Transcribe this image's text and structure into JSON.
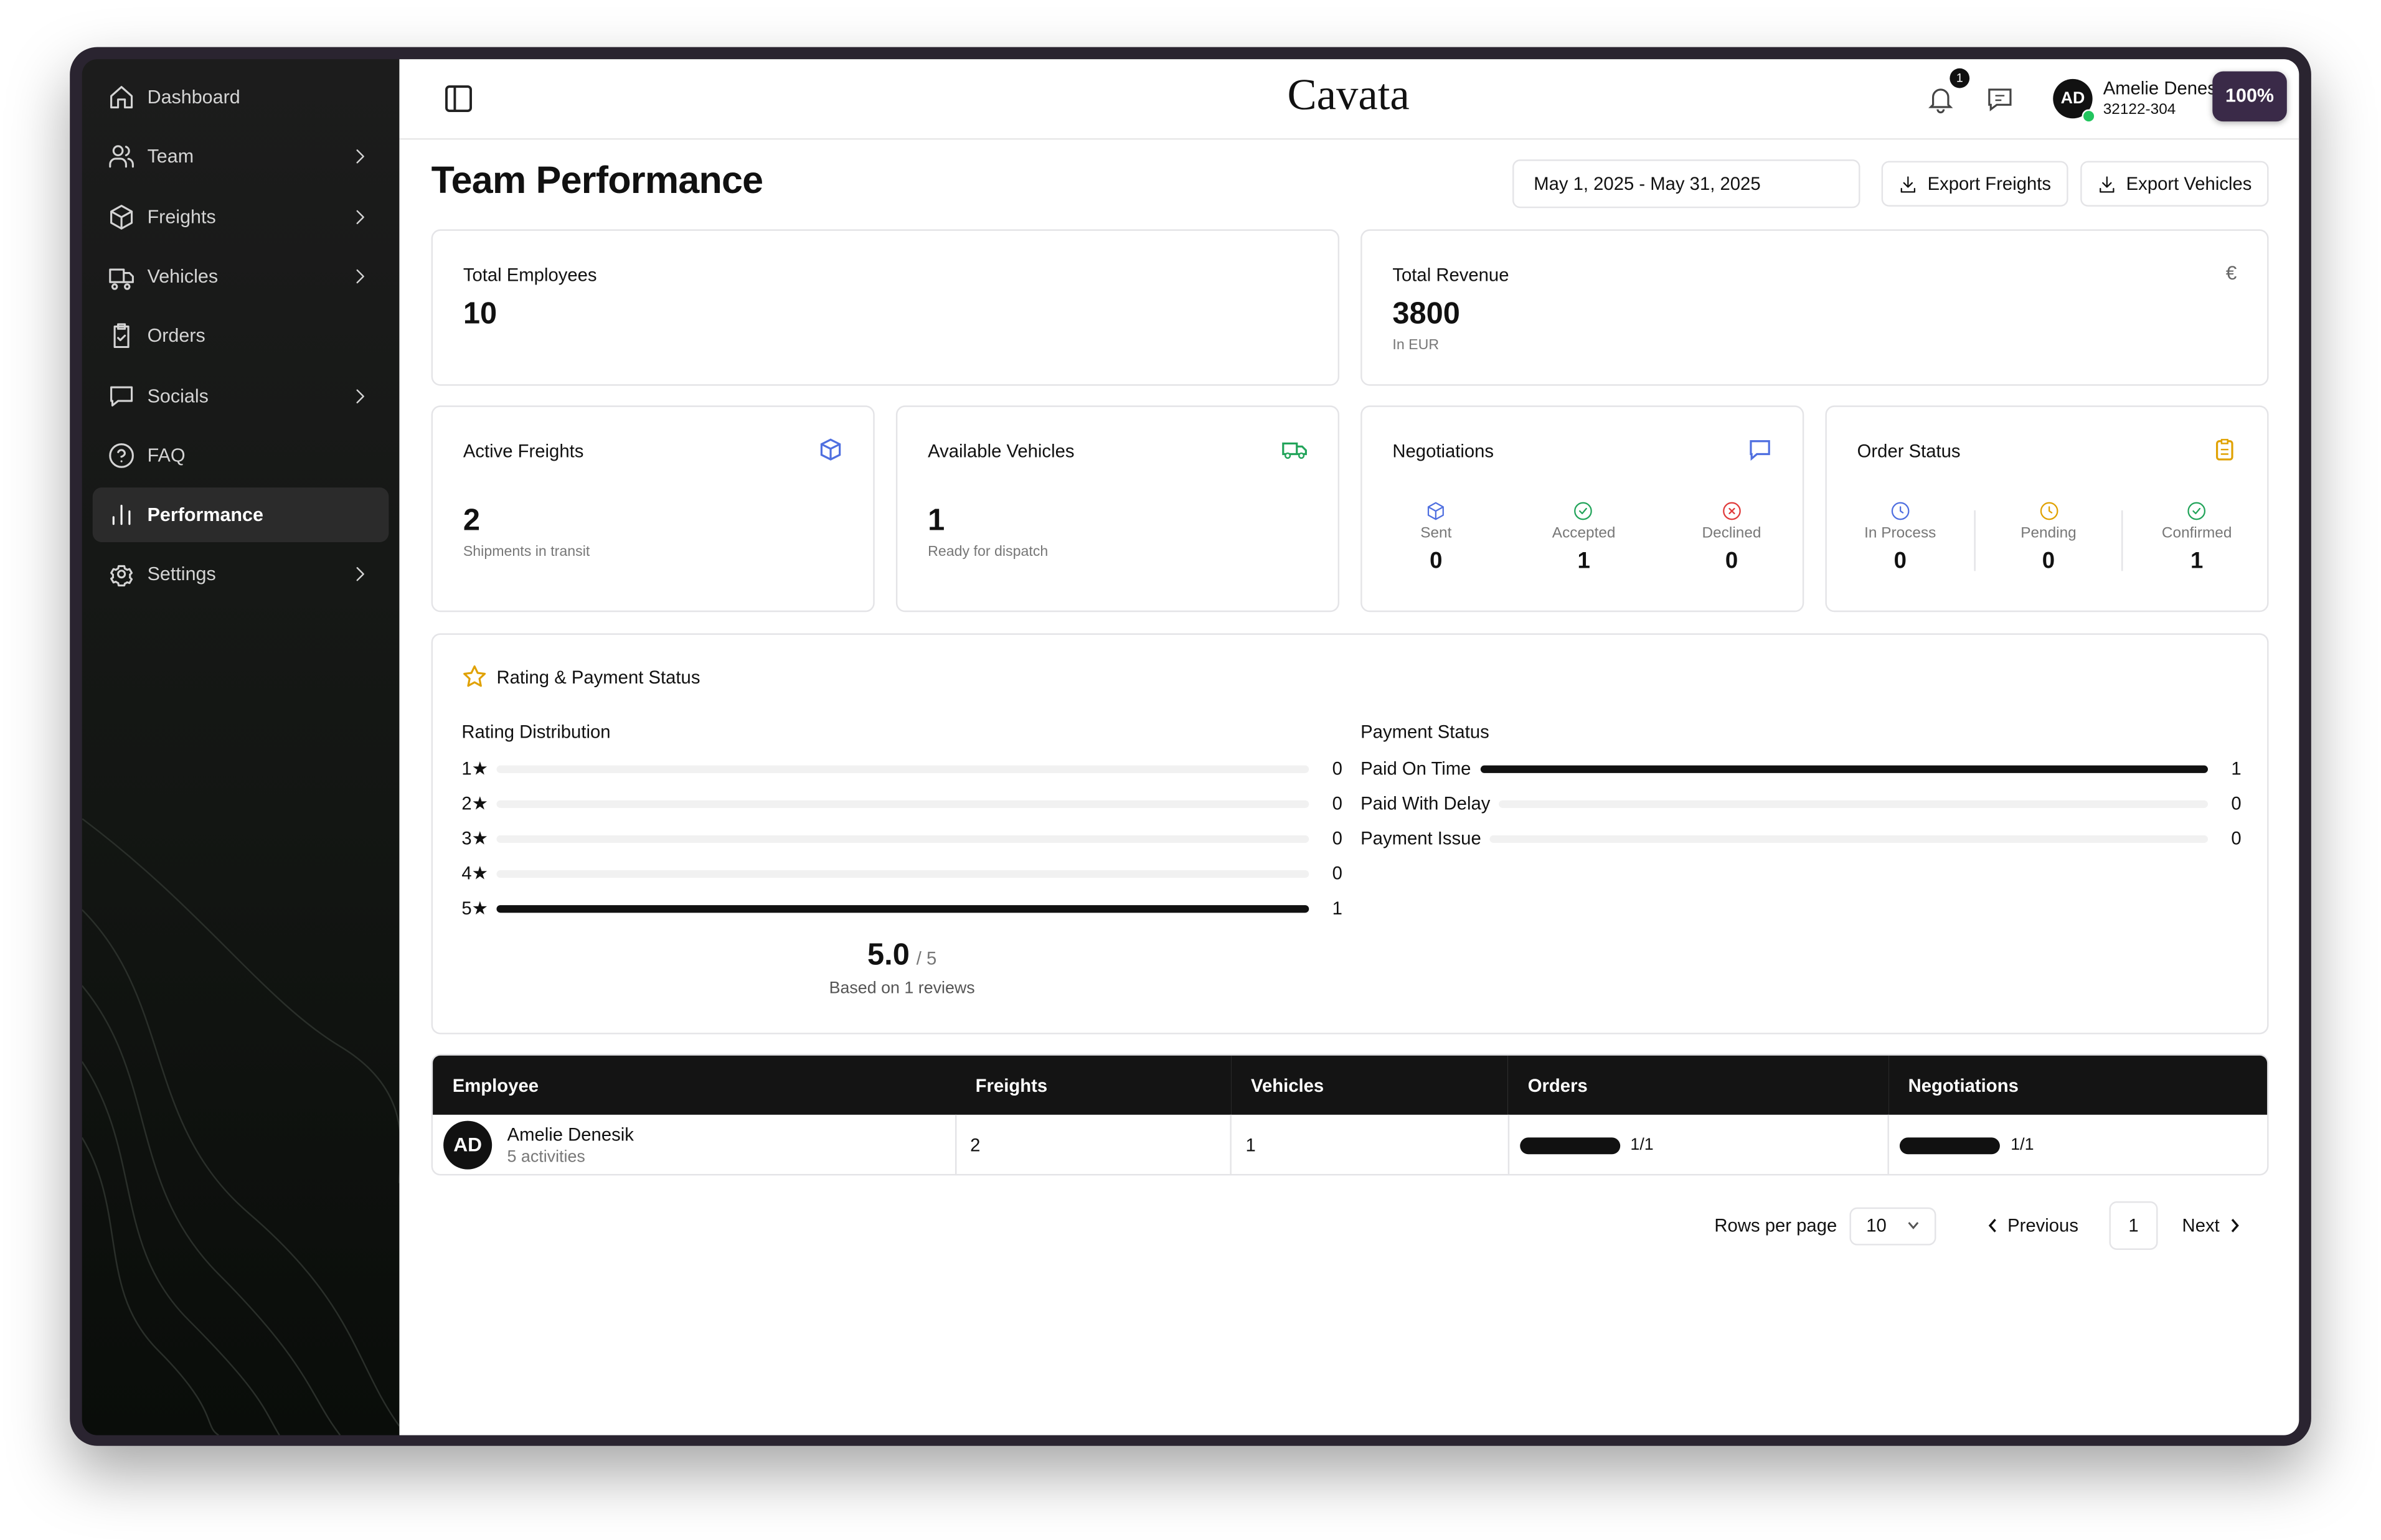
{
  "sidebar": {
    "items": [
      {
        "label": "Dashboard",
        "submenu": false
      },
      {
        "label": "Team",
        "submenu": true
      },
      {
        "label": "Freights",
        "submenu": true
      },
      {
        "label": "Vehicles",
        "submenu": true
      },
      {
        "label": "Orders",
        "submenu": false
      },
      {
        "label": "Socials",
        "submenu": true
      },
      {
        "label": "FAQ",
        "submenu": false
      },
      {
        "label": "Performance",
        "submenu": false,
        "active": true
      },
      {
        "label": "Settings",
        "submenu": true
      }
    ]
  },
  "header": {
    "brand": "Cavata",
    "notifications": "1",
    "user": {
      "initials": "AD",
      "name": "Amelie Denes",
      "id": "32122-304"
    },
    "zoom": "100%"
  },
  "page": {
    "title": "Team Performance",
    "date_range": "May 1, 2025 - May 31, 2025",
    "actions": [
      "Export Freights",
      "Export Vehicles"
    ]
  },
  "summary": [
    {
      "label": "Total Employees",
      "value": 10
    },
    {
      "label": "Total Revenue",
      "value": 3800,
      "note": "In EUR",
      "icon": "€"
    }
  ],
  "cards": {
    "active_freights": {
      "label": "Active Freights",
      "value": 2,
      "note": "Shipments in transit"
    },
    "available_vehicles": {
      "label": "Available Vehicles",
      "value": 1,
      "note": "Ready for dispatch"
    },
    "negotiations": {
      "label": "Negotiations",
      "items": [
        {
          "label": "Sent",
          "value": 0
        },
        {
          "label": "Accepted",
          "value": 1
        },
        {
          "label": "Declined",
          "value": 0
        }
      ]
    },
    "order_status": {
      "label": "Order Status",
      "items": [
        {
          "label": "In Process",
          "value": 0
        },
        {
          "label": "Pending",
          "value": 0
        },
        {
          "label": "Confirmed",
          "value": 1
        }
      ]
    }
  },
  "ratings": {
    "title": "Rating & Payment Status",
    "distribution": {
      "title": "Rating Distribution",
      "rows": [
        {
          "label": "1★",
          "count": 0
        },
        {
          "label": "2★",
          "count": 0
        },
        {
          "label": "3★",
          "count": 0
        },
        {
          "label": "4★",
          "count": 0
        },
        {
          "label": "5★",
          "count": 1
        }
      ]
    },
    "average": "5.0",
    "scale": "/ 5",
    "reviews": "Based on 1 reviews",
    "payment": {
      "title": "Payment Status",
      "rows": [
        {
          "label": "Paid On Time",
          "count": 1
        },
        {
          "label": "Paid With Delay",
          "count": 0
        },
        {
          "label": "Payment Issue",
          "count": 0
        }
      ]
    }
  },
  "table": {
    "columns": [
      "Employee",
      "Freights",
      "Vehicles",
      "Orders",
      "Negotiations"
    ],
    "rows": [
      {
        "initials": "AD",
        "name": "Amelie Denesik",
        "activities": "5 activities",
        "freights": 2,
        "vehicles": 1,
        "orders": {
          "done": 1,
          "total": 1,
          "label": "1/1"
        },
        "negotiations": {
          "done": 1,
          "total": 1,
          "label": "1/1"
        }
      }
    ]
  },
  "pagination": {
    "rows_label": "Rows per page",
    "rows_per_page": "10",
    "previous": "Previous",
    "page": "1",
    "next": "Next"
  }
}
